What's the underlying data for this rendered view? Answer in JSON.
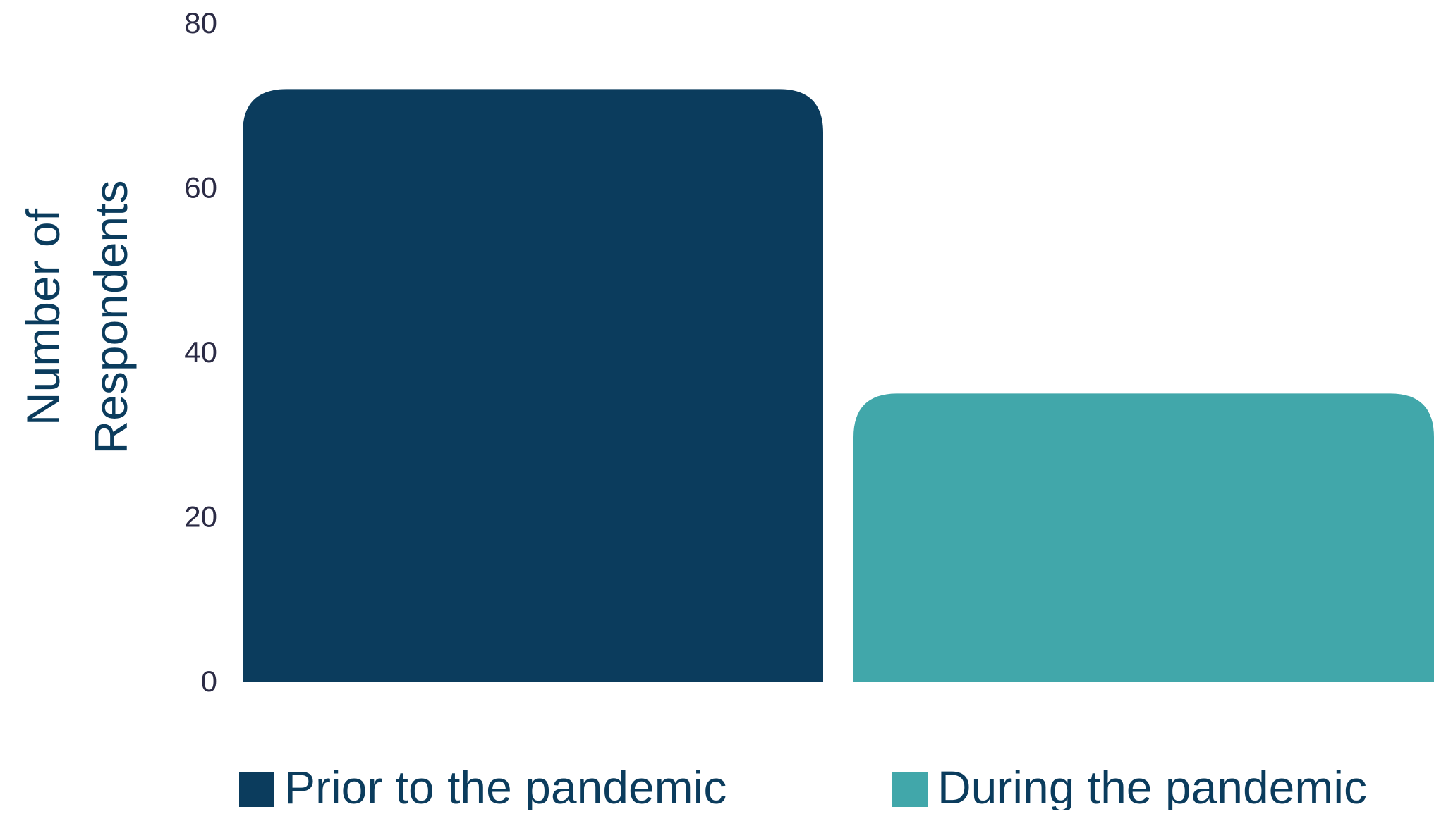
{
  "chart_data": {
    "type": "bar",
    "categories": [
      "Prior to the pandemic",
      "During the pandemic"
    ],
    "values": [
      72,
      35
    ],
    "ylabel": "Number of Respondents",
    "ylabel_lines": [
      "Number of",
      "Respondents"
    ],
    "ylim": [
      0,
      80
    ],
    "yticks": [
      0,
      20,
      40,
      60,
      80
    ],
    "ytick_labels": [
      "0",
      "20",
      "40",
      "60",
      "80"
    ],
    "colors": [
      "#0b3c5d",
      "#41a7aa"
    ],
    "legend": {
      "position": "bottom",
      "entries": [
        "Prior to the pandemic",
        "During the pandemic"
      ]
    },
    "grid": false
  },
  "colors": {
    "text": "#0b3c5d",
    "tick_text": "#2b2b45",
    "background": "#ffffff"
  }
}
